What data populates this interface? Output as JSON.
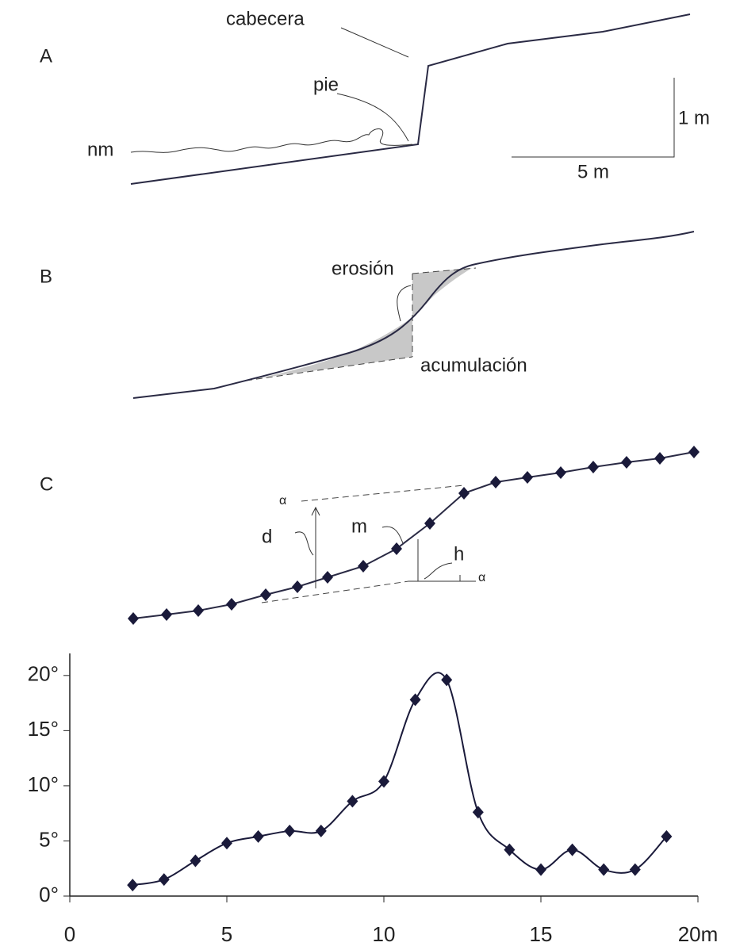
{
  "diagram": {
    "panel_a": {
      "letter": "A",
      "head": "cabecera",
      "toe": "pie",
      "water": "nm",
      "vscale": "1 m",
      "hscale": "5 m"
    },
    "panel_b": {
      "letter": "B",
      "erosion": "erosión",
      "accumulation": "acumulación"
    },
    "panel_c": {
      "letter": "C",
      "alpha1": "α",
      "d": "d",
      "m": "m",
      "h": "h",
      "alpha2": "α"
    }
  },
  "chart_data": {
    "type": "line",
    "x": [
      2,
      3,
      4,
      5,
      6,
      7,
      8,
      9,
      10,
      11,
      12,
      13,
      14,
      15,
      16,
      17,
      18,
      19
    ],
    "series": [
      {
        "color": "#1a1a3a",
        "values": [
          1,
          1.5,
          3.2,
          4.8,
          5.4,
          5.9,
          5.9,
          8.6,
          10.4,
          17.8,
          19.6,
          7.6,
          4.2,
          2.4,
          4.2,
          2.4,
          2.4,
          5.4
        ]
      }
    ],
    "xlim": [
      0,
      20
    ],
    "ylim": [
      0,
      22
    ],
    "xticks": [
      0,
      5,
      10,
      15,
      {
        "value": 20,
        "label": "20m"
      }
    ],
    "yticks": [
      {
        "value": 0,
        "label": "0°"
      },
      {
        "value": 5,
        "label": "5°"
      },
      {
        "value": 10,
        "label": "10°"
      },
      {
        "value": 15,
        "label": "15°"
      },
      {
        "value": 20,
        "label": "20°"
      }
    ]
  }
}
